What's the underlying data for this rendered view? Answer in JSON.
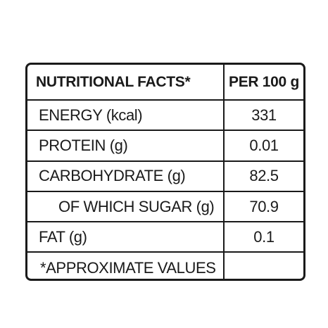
{
  "table": {
    "header": {
      "label": "NUTRITIONAL FACTS*",
      "value": "PER 100 g"
    },
    "rows": [
      {
        "label": "ENERGY (kcal)",
        "value": "331"
      },
      {
        "label": "PROTEIN (g)",
        "value": "0.01"
      },
      {
        "label": "CARBOHYDRATE (g)",
        "value": "82.5"
      },
      {
        "label": "OF WHICH SUGAR (g)",
        "value": "70.9"
      },
      {
        "label": "FAT (g)",
        "value": "0.1"
      }
    ],
    "footnote": "*APPROXIMATE VALUES"
  }
}
